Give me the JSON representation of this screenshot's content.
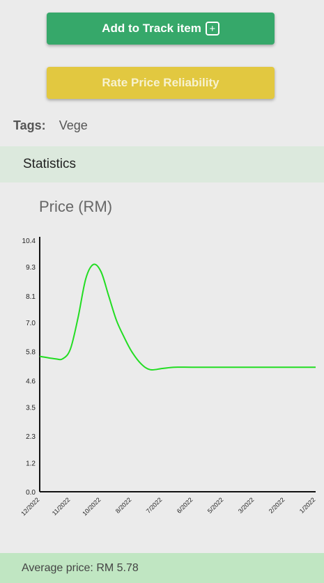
{
  "actions": {
    "track_label": "Add to Track item",
    "track_icon": "plus-square-icon",
    "rate_label": "Rate Price Reliability"
  },
  "tags": {
    "label": "Tags:",
    "value": "Vege"
  },
  "statistics": {
    "header": "Statistics"
  },
  "chart_data": {
    "type": "line",
    "title": "Price (RM)",
    "y_ticks": [
      "10.4",
      "9.3",
      "8.1",
      "7.0",
      "5.8",
      "4.6",
      "3.5",
      "2.3",
      "1.2",
      "0.0"
    ],
    "ylim": [
      0,
      10.4
    ],
    "x_ticks": [
      "12/2022",
      "11/2022",
      "10/2022",
      "8/2022",
      "7/2022",
      "6/2022",
      "5/2022",
      "3/2022",
      "2/2022",
      "1/2022"
    ],
    "series": [
      {
        "color": "#22dd22",
        "points": [
          [
            0,
            5.6
          ],
          [
            0.5,
            5.5
          ],
          [
            0.75,
            5.5
          ],
          [
            1.0,
            5.9
          ],
          [
            1.25,
            7.2
          ],
          [
            1.5,
            8.8
          ],
          [
            1.75,
            9.4
          ],
          [
            2.0,
            9.1
          ],
          [
            2.25,
            8.1
          ],
          [
            2.5,
            7.1
          ],
          [
            2.75,
            6.4
          ],
          [
            3.0,
            5.8
          ],
          [
            3.3,
            5.3
          ],
          [
            3.6,
            5.05
          ],
          [
            4.0,
            5.1
          ],
          [
            4.4,
            5.15
          ],
          [
            5,
            5.15
          ],
          [
            6,
            5.15
          ],
          [
            7,
            5.15
          ],
          [
            8,
            5.15
          ],
          [
            9,
            5.15
          ]
        ]
      }
    ],
    "grid": false,
    "legend": "none"
  },
  "summary": {
    "average_text": "Average price: RM 5.78"
  }
}
